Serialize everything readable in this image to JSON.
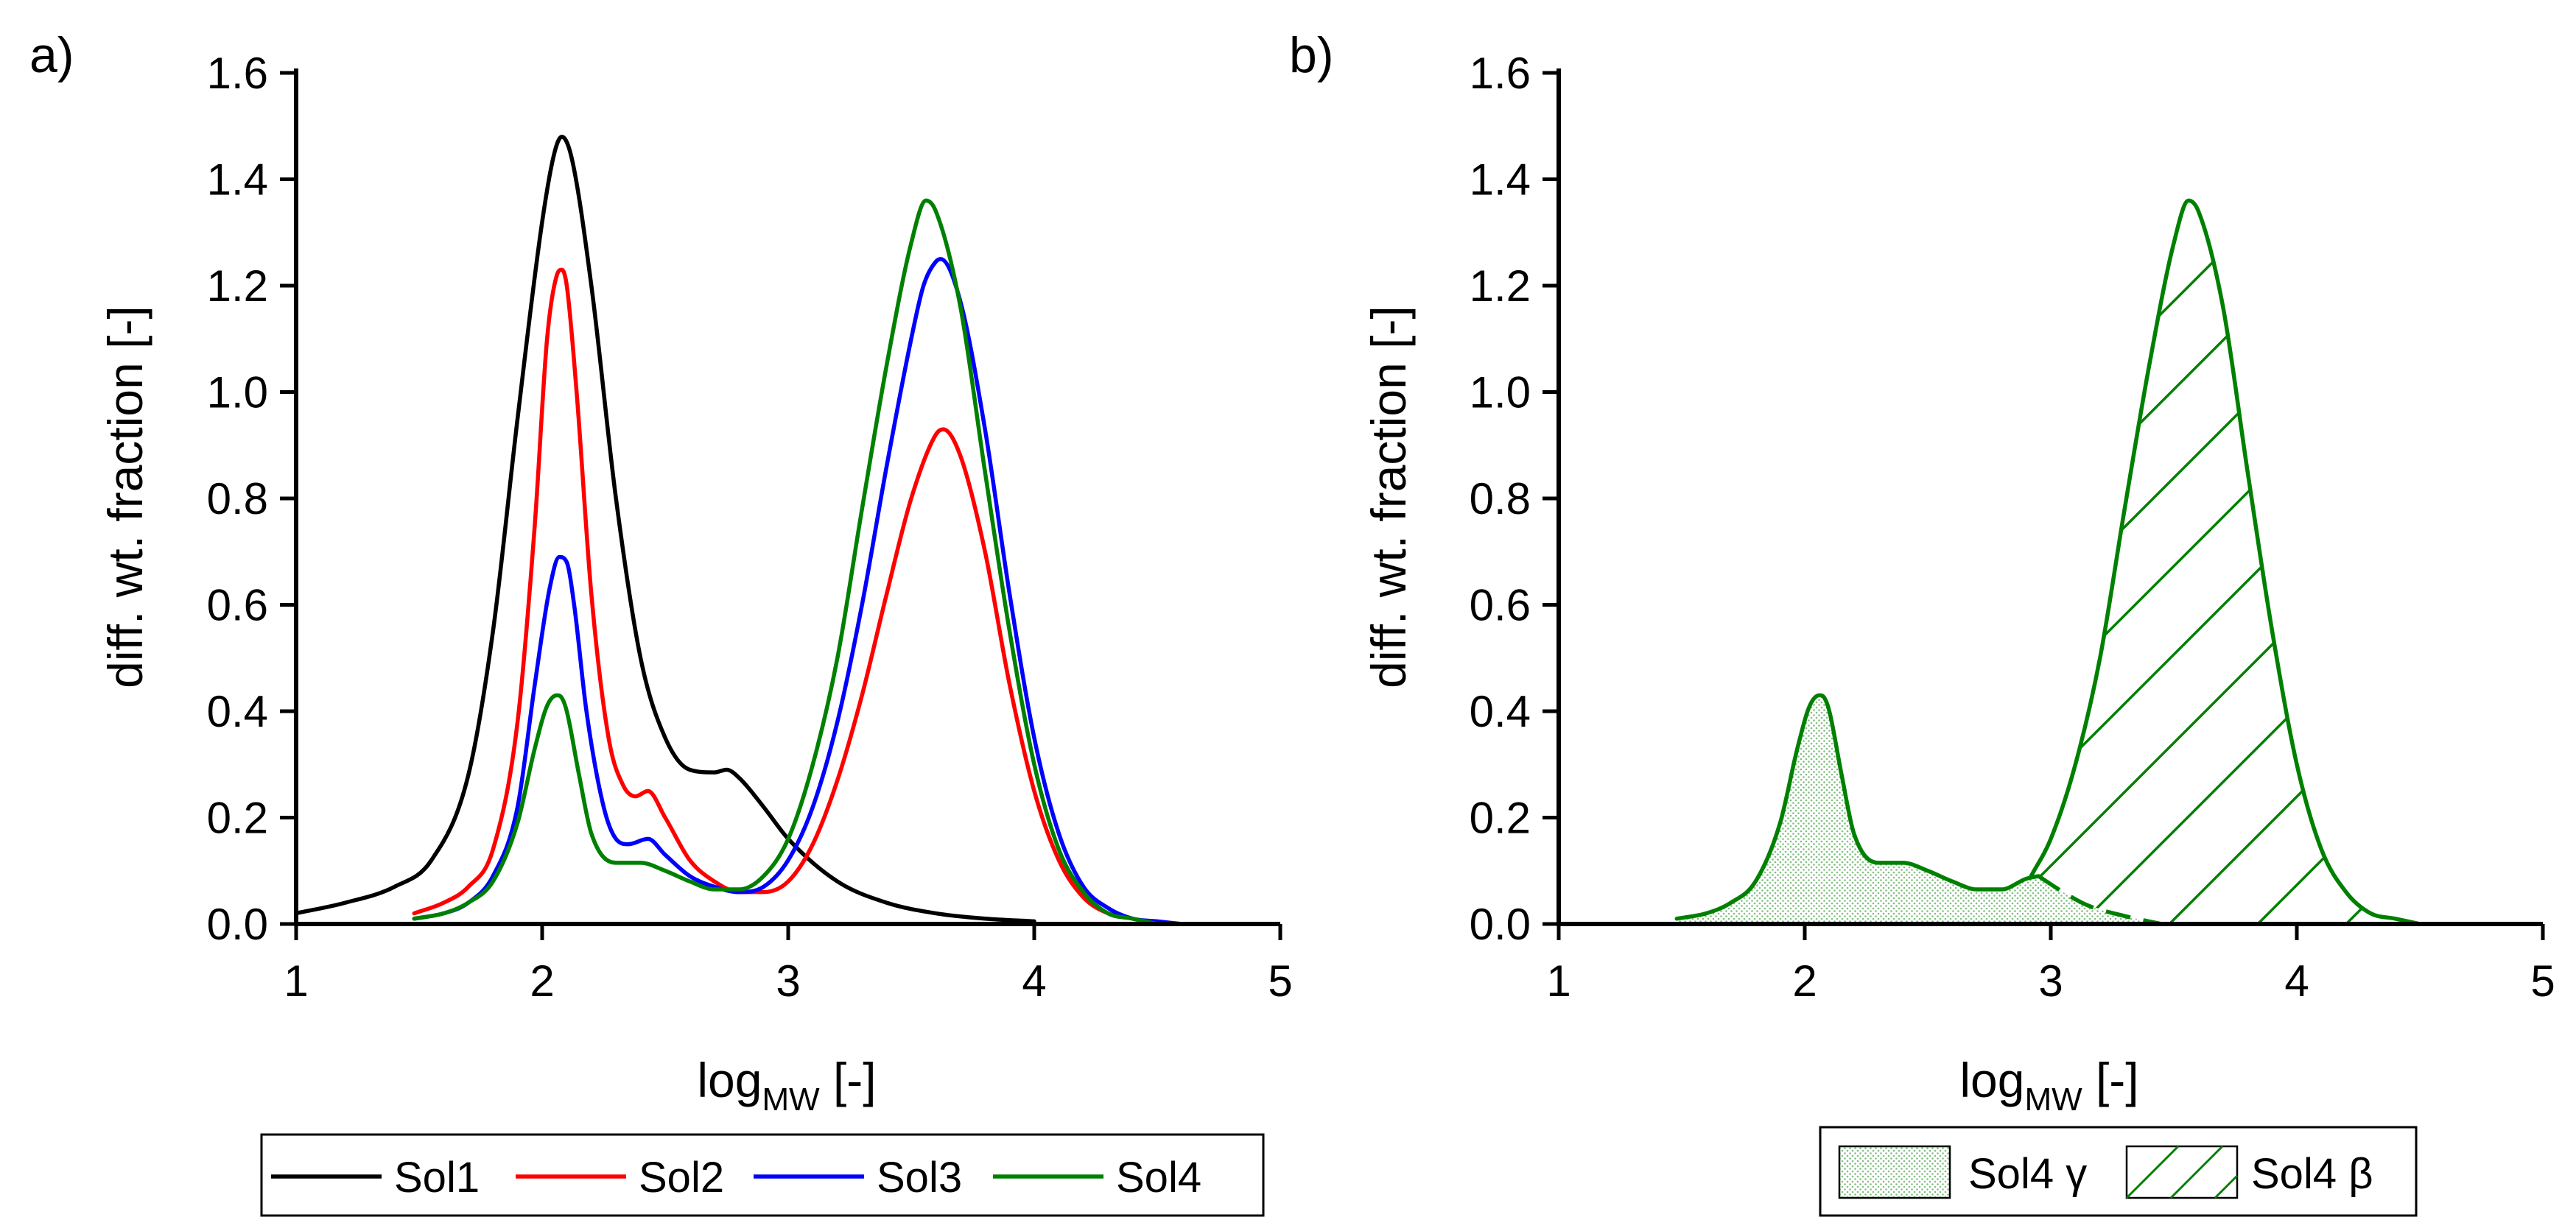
{
  "chart_data": [
    {
      "panel": "a)",
      "type": "line",
      "xlabel": "log",
      "xlabel_sub": "MW",
      "xlabel_unit": " [-]",
      "ylabel": "diff. wt. fraction [-]",
      "xlim": [
        1,
        5
      ],
      "ylim": [
        0,
        1.6
      ],
      "xticks": [
        1,
        2,
        3,
        4,
        5
      ],
      "yticks": [
        0.0,
        0.2,
        0.4,
        0.6,
        0.8,
        1.0,
        1.2,
        1.4,
        1.6
      ],
      "series": [
        {
          "name": "Sol1",
          "color": "#000000",
          "x": [
            1.0,
            1.2,
            1.4,
            1.55,
            1.7,
            1.8,
            1.9,
            2.0,
            2.05,
            2.08,
            2.12,
            2.2,
            2.3,
            2.4,
            2.5,
            2.6,
            2.7,
            2.75,
            2.8,
            2.9,
            3.0,
            3.2,
            3.4,
            3.6,
            3.8,
            4.0
          ],
          "y": [
            0.02,
            0.04,
            0.07,
            0.12,
            0.28,
            0.55,
            0.95,
            1.32,
            1.45,
            1.48,
            1.44,
            1.2,
            0.8,
            0.5,
            0.35,
            0.29,
            0.285,
            0.29,
            0.275,
            0.22,
            0.16,
            0.08,
            0.04,
            0.02,
            0.01,
            0.005
          ]
        },
        {
          "name": "Sol2",
          "color": "#ff0000",
          "x": [
            1.48,
            1.6,
            1.7,
            1.8,
            1.9,
            1.97,
            2.02,
            2.06,
            2.08,
            2.1,
            2.14,
            2.2,
            2.27,
            2.33,
            2.38,
            2.43,
            2.5,
            2.6,
            2.7,
            2.8,
            2.9,
            3.0,
            3.1,
            3.2,
            3.3,
            3.4,
            3.5,
            3.6,
            3.63,
            3.7,
            3.8,
            3.9,
            4.0,
            4.1,
            4.2,
            4.3,
            4.4
          ],
          "y": [
            0.02,
            0.04,
            0.07,
            0.14,
            0.38,
            0.75,
            1.1,
            1.22,
            1.23,
            1.2,
            1.0,
            0.62,
            0.35,
            0.26,
            0.24,
            0.25,
            0.2,
            0.12,
            0.08,
            0.06,
            0.06,
            0.08,
            0.15,
            0.27,
            0.43,
            0.62,
            0.8,
            0.92,
            0.93,
            0.88,
            0.7,
            0.45,
            0.25,
            0.12,
            0.05,
            0.02,
            0.01
          ]
        },
        {
          "name": "Sol3",
          "color": "#0000ff",
          "x": [
            1.48,
            1.6,
            1.7,
            1.8,
            1.9,
            1.97,
            2.03,
            2.07,
            2.1,
            2.13,
            2.18,
            2.25,
            2.3,
            2.35,
            2.43,
            2.5,
            2.6,
            2.7,
            2.8,
            2.9,
            3.0,
            3.1,
            3.2,
            3.3,
            3.4,
            3.5,
            3.55,
            3.6,
            3.62,
            3.7,
            3.8,
            3.9,
            4.0,
            4.1,
            4.2,
            4.3,
            4.4,
            4.5,
            4.6
          ],
          "y": [
            0.01,
            0.02,
            0.04,
            0.09,
            0.22,
            0.45,
            0.63,
            0.69,
            0.68,
            0.6,
            0.4,
            0.22,
            0.16,
            0.15,
            0.16,
            0.13,
            0.09,
            0.07,
            0.06,
            0.07,
            0.12,
            0.22,
            0.38,
            0.6,
            0.86,
            1.1,
            1.2,
            1.245,
            1.25,
            1.17,
            0.93,
            0.62,
            0.35,
            0.17,
            0.07,
            0.03,
            0.01,
            0.005,
            0.0
          ]
        },
        {
          "name": "Sol4",
          "color": "#008000",
          "x": [
            1.48,
            1.6,
            1.7,
            1.8,
            1.9,
            1.97,
            2.02,
            2.06,
            2.08,
            2.1,
            2.15,
            2.2,
            2.3,
            2.4,
            2.5,
            2.6,
            2.7,
            2.8,
            2.9,
            3.0,
            3.1,
            3.2,
            3.3,
            3.4,
            3.5,
            3.56,
            3.6,
            3.7,
            3.8,
            3.9,
            4.0,
            4.1,
            4.2,
            4.3,
            4.4,
            4.5
          ],
          "y": [
            0.01,
            0.02,
            0.04,
            0.08,
            0.19,
            0.33,
            0.41,
            0.43,
            0.425,
            0.4,
            0.28,
            0.17,
            0.115,
            0.115,
            0.1,
            0.08,
            0.065,
            0.065,
            0.09,
            0.16,
            0.3,
            0.5,
            0.78,
            1.05,
            1.28,
            1.36,
            1.34,
            1.16,
            0.85,
            0.55,
            0.3,
            0.14,
            0.06,
            0.02,
            0.01,
            0.0
          ]
        }
      ],
      "legend": [
        "Sol1",
        "Sol2",
        "Sol3",
        "Sol4"
      ],
      "legend_position": "bottom"
    },
    {
      "panel": "b)",
      "type": "area",
      "xlabel": "log",
      "xlabel_sub": "MW",
      "xlabel_unit": " [-]",
      "ylabel": "diff. wt. fraction [-]",
      "xlim": [
        1,
        5
      ],
      "ylim": [
        0,
        1.6
      ],
      "xticks": [
        1,
        2,
        3,
        4,
        5
      ],
      "yticks": [
        0.0,
        0.2,
        0.4,
        0.6,
        0.8,
        1.0,
        1.2,
        1.4,
        1.6
      ],
      "color": "#008000",
      "series": [
        {
          "name": "Sol4 γ",
          "fill": "dotted",
          "x": [
            1.48,
            1.6,
            1.7,
            1.8,
            1.9,
            1.97,
            2.02,
            2.06,
            2.08,
            2.1,
            2.15,
            2.2,
            2.3,
            2.4,
            2.5,
            2.6,
            2.7,
            2.8,
            2.9,
            2.95,
            3.05,
            3.15,
            3.3,
            3.45
          ],
          "y": [
            0.01,
            0.02,
            0.04,
            0.08,
            0.19,
            0.33,
            0.41,
            0.43,
            0.425,
            0.4,
            0.28,
            0.17,
            0.115,
            0.115,
            0.1,
            0.08,
            0.065,
            0.065,
            0.085,
            0.09,
            0.06,
            0.035,
            0.015,
            0.0
          ]
        },
        {
          "name": "Sol4 β",
          "fill": "hatched",
          "x": [
            2.92,
            3.0,
            3.1,
            3.2,
            3.3,
            3.4,
            3.5,
            3.56,
            3.6,
            3.7,
            3.8,
            3.9,
            4.0,
            4.1,
            4.2,
            4.3,
            4.4,
            4.5
          ],
          "y": [
            0.09,
            0.16,
            0.3,
            0.5,
            0.78,
            1.05,
            1.28,
            1.36,
            1.34,
            1.16,
            0.85,
            0.55,
            0.3,
            0.14,
            0.06,
            0.02,
            0.01,
            0.0
          ]
        }
      ],
      "legend": [
        "Sol4 γ",
        "Sol4 β"
      ],
      "legend_position": "bottom"
    }
  ]
}
